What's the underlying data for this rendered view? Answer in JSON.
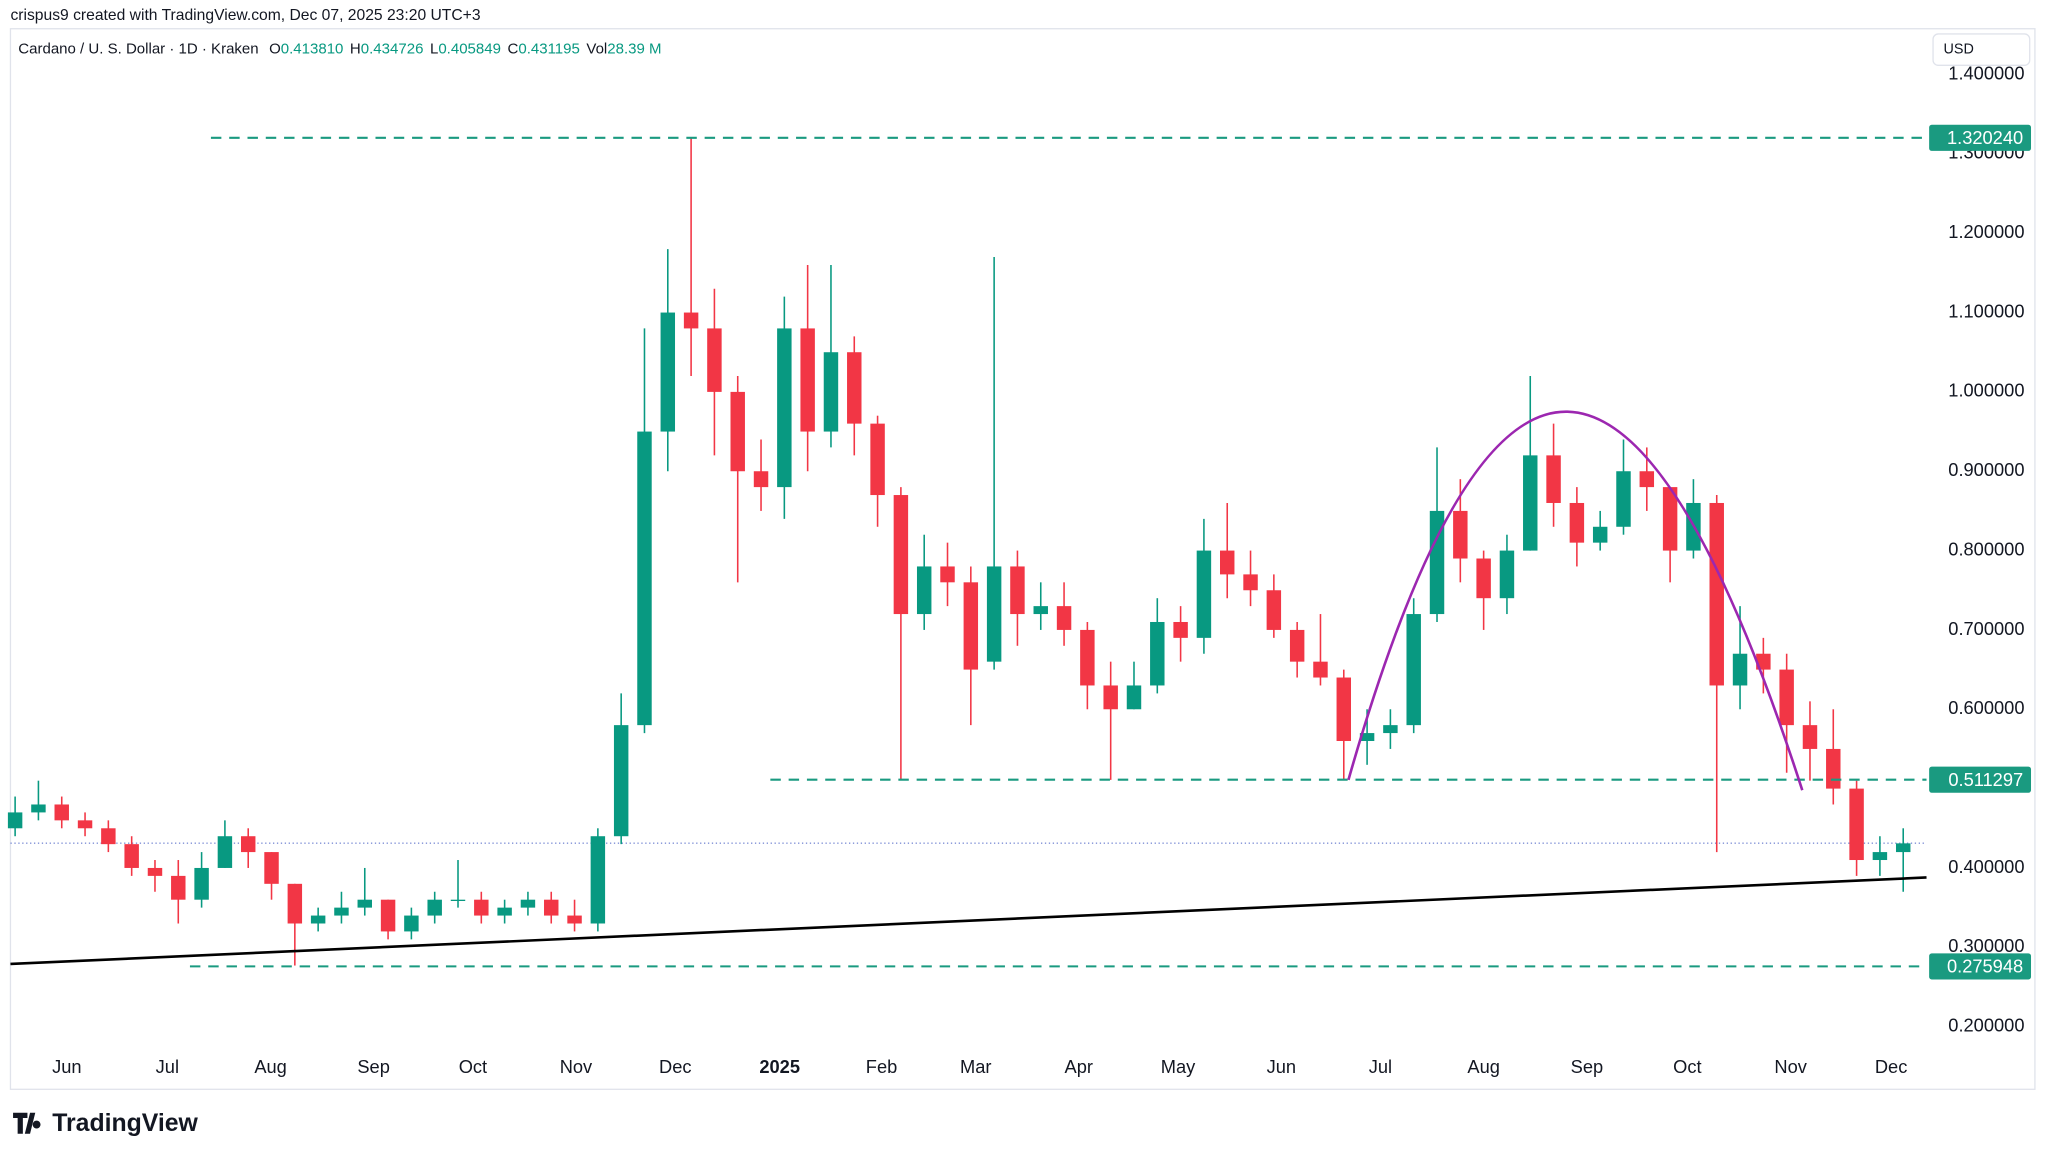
{
  "header": {
    "credit": "crispus9 created with TradingView.com, Dec 07, 2025 23:20 UTC+3",
    "symbol": "Cardano / U. S. Dollar · 1D · Kraken",
    "ohlc_info": [
      {
        "key": "O",
        "value": "0.413810"
      },
      {
        "key": "H",
        "value": "0.434726"
      },
      {
        "key": "L",
        "value": "0.405849"
      },
      {
        "key": "C",
        "value": "0.431195"
      },
      {
        "key": "Vol",
        "value": "28.39 M"
      }
    ],
    "currency": "USD"
  },
  "footer": {
    "brand": "TradingView"
  },
  "chart_data": {
    "type": "candlestick",
    "up_color": "#089981",
    "down_color": "#f23645",
    "ylim": [
      0.177,
      1.461
    ],
    "xlim": [
      -0.2,
      82.0
    ],
    "yticks": [
      {
        "value": 0.2,
        "label": "0.200000"
      },
      {
        "value": 0.3,
        "label": "0.300000"
      },
      {
        "value": 0.4,
        "label": "0.400000"
      },
      {
        "value": 0.6,
        "label": "0.600000"
      },
      {
        "value": 0.7,
        "label": "0.700000"
      },
      {
        "value": 0.8,
        "label": "0.800000"
      },
      {
        "value": 0.9,
        "label": "0.900000"
      },
      {
        "value": 1.0,
        "label": "1.000000"
      },
      {
        "value": 1.1,
        "label": "1.100000"
      },
      {
        "value": 1.2,
        "label": "1.200000"
      },
      {
        "value": 1.3,
        "label": "1.300000"
      },
      {
        "value": 1.4,
        "label": "1.400000"
      }
    ],
    "xticks": [
      {
        "value": 2.22,
        "label": "Jun"
      },
      {
        "value": 6.53,
        "label": "Jul"
      },
      {
        "value": 10.96,
        "label": "Aug"
      },
      {
        "value": 15.38,
        "label": "Sep"
      },
      {
        "value": 19.64,
        "label": "Oct"
      },
      {
        "value": 24.06,
        "label": "Nov"
      },
      {
        "value": 28.32,
        "label": "Dec"
      },
      {
        "value": 32.8,
        "label": "2025"
      },
      {
        "value": 37.17,
        "label": "Feb"
      },
      {
        "value": 41.21,
        "label": "Mar"
      },
      {
        "value": 45.63,
        "label": "Apr"
      },
      {
        "value": 49.89,
        "label": "May"
      },
      {
        "value": 54.32,
        "label": "Jun"
      },
      {
        "value": 58.57,
        "label": "Jul"
      },
      {
        "value": 63.0,
        "label": "Aug"
      },
      {
        "value": 67.43,
        "label": "Sep"
      },
      {
        "value": 71.74,
        "label": "Oct"
      },
      {
        "value": 76.17,
        "label": "Nov"
      },
      {
        "value": 80.48,
        "label": "Dec"
      }
    ],
    "ohlc": [
      [
        0.45,
        0.49,
        0.44,
        0.47
      ],
      [
        0.47,
        0.51,
        0.46,
        0.48
      ],
      [
        0.48,
        0.49,
        0.45,
        0.46
      ],
      [
        0.46,
        0.47,
        0.44,
        0.45
      ],
      [
        0.45,
        0.46,
        0.42,
        0.43
      ],
      [
        0.43,
        0.44,
        0.39,
        0.4
      ],
      [
        0.4,
        0.41,
        0.37,
        0.39
      ],
      [
        0.39,
        0.41,
        0.33,
        0.36
      ],
      [
        0.36,
        0.42,
        0.35,
        0.4
      ],
      [
        0.4,
        0.46,
        0.4,
        0.44
      ],
      [
        0.44,
        0.45,
        0.4,
        0.42
      ],
      [
        0.42,
        0.42,
        0.36,
        0.38
      ],
      [
        0.38,
        0.38,
        0.277,
        0.33
      ],
      [
        0.33,
        0.35,
        0.32,
        0.34
      ],
      [
        0.34,
        0.37,
        0.33,
        0.35
      ],
      [
        0.35,
        0.4,
        0.34,
        0.36
      ],
      [
        0.36,
        0.36,
        0.31,
        0.32
      ],
      [
        0.32,
        0.35,
        0.31,
        0.34
      ],
      [
        0.34,
        0.37,
        0.33,
        0.36
      ],
      [
        0.36,
        0.41,
        0.35,
        0.36
      ],
      [
        0.36,
        0.37,
        0.33,
        0.34
      ],
      [
        0.34,
        0.36,
        0.33,
        0.35
      ],
      [
        0.35,
        0.37,
        0.34,
        0.36
      ],
      [
        0.36,
        0.37,
        0.33,
        0.34
      ],
      [
        0.34,
        0.36,
        0.32,
        0.33
      ],
      [
        0.33,
        0.45,
        0.32,
        0.44
      ],
      [
        0.44,
        0.62,
        0.43,
        0.58
      ],
      [
        0.58,
        1.08,
        0.57,
        0.95
      ],
      [
        0.95,
        1.18,
        0.9,
        1.1
      ],
      [
        1.1,
        1.32,
        1.02,
        1.08
      ],
      [
        1.08,
        1.13,
        0.92,
        1.0
      ],
      [
        1.0,
        1.02,
        0.76,
        0.9
      ],
      [
        0.9,
        0.94,
        0.85,
        0.88
      ],
      [
        0.88,
        1.12,
        0.84,
        1.08
      ],
      [
        1.08,
        1.16,
        0.9,
        0.95
      ],
      [
        0.95,
        1.16,
        0.93,
        1.05
      ],
      [
        1.05,
        1.07,
        0.92,
        0.96
      ],
      [
        0.96,
        0.97,
        0.83,
        0.87
      ],
      [
        0.87,
        0.88,
        0.511,
        0.72
      ],
      [
        0.72,
        0.82,
        0.7,
        0.78
      ],
      [
        0.78,
        0.81,
        0.73,
        0.76
      ],
      [
        0.76,
        0.78,
        0.58,
        0.65
      ],
      [
        0.66,
        1.17,
        0.65,
        0.78
      ],
      [
        0.78,
        0.8,
        0.68,
        0.72
      ],
      [
        0.72,
        0.76,
        0.7,
        0.73
      ],
      [
        0.73,
        0.76,
        0.68,
        0.7
      ],
      [
        0.7,
        0.71,
        0.6,
        0.63
      ],
      [
        0.63,
        0.66,
        0.511,
        0.6
      ],
      [
        0.6,
        0.66,
        0.6,
        0.63
      ],
      [
        0.63,
        0.74,
        0.62,
        0.71
      ],
      [
        0.71,
        0.73,
        0.66,
        0.69
      ],
      [
        0.69,
        0.84,
        0.67,
        0.8
      ],
      [
        0.8,
        0.86,
        0.74,
        0.77
      ],
      [
        0.77,
        0.8,
        0.73,
        0.75
      ],
      [
        0.75,
        0.77,
        0.69,
        0.7
      ],
      [
        0.7,
        0.71,
        0.64,
        0.66
      ],
      [
        0.66,
        0.72,
        0.63,
        0.64
      ],
      [
        0.64,
        0.65,
        0.512,
        0.56
      ],
      [
        0.56,
        0.6,
        0.53,
        0.57
      ],
      [
        0.57,
        0.6,
        0.55,
        0.58
      ],
      [
        0.58,
        0.74,
        0.57,
        0.72
      ],
      [
        0.72,
        0.93,
        0.71,
        0.85
      ],
      [
        0.85,
        0.89,
        0.76,
        0.79
      ],
      [
        0.79,
        0.8,
        0.7,
        0.74
      ],
      [
        0.74,
        0.82,
        0.72,
        0.8
      ],
      [
        0.8,
        1.02,
        0.8,
        0.92
      ],
      [
        0.92,
        0.96,
        0.83,
        0.86
      ],
      [
        0.86,
        0.88,
        0.78,
        0.81
      ],
      [
        0.81,
        0.85,
        0.8,
        0.83
      ],
      [
        0.83,
        0.94,
        0.82,
        0.9
      ],
      [
        0.9,
        0.93,
        0.85,
        0.88
      ],
      [
        0.88,
        0.88,
        0.76,
        0.8
      ],
      [
        0.8,
        0.89,
        0.79,
        0.86
      ],
      [
        0.86,
        0.87,
        0.42,
        0.63
      ],
      [
        0.63,
        0.73,
        0.6,
        0.67
      ],
      [
        0.67,
        0.69,
        0.62,
        0.65
      ],
      [
        0.65,
        0.67,
        0.52,
        0.58
      ],
      [
        0.58,
        0.61,
        0.51,
        0.55
      ],
      [
        0.55,
        0.6,
        0.48,
        0.5
      ],
      [
        0.5,
        0.51,
        0.39,
        0.41
      ],
      [
        0.41,
        0.44,
        0.39,
        0.42
      ],
      [
        0.42,
        0.45,
        0.37,
        0.431
      ]
    ],
    "levels": [
      {
        "value": 1.32024,
        "label": "1.320240",
        "x_start": 8.4
      },
      {
        "value": 0.511297,
        "label": "0.511297",
        "x_start": 32.4
      },
      {
        "value": 0.275948,
        "label": "0.275948",
        "x_start": 7.5
      }
    ],
    "level_color": "#1a9a80",
    "last_price": 0.431195,
    "trendline": {
      "x": [
        -0.2,
        82.0
      ],
      "y": [
        0.279,
        0.388
      ],
      "color": "#000000"
    },
    "arc": {
      "x": [
        57.2,
        66.6,
        76.67
      ],
      "y": [
        0.511,
        0.975,
        0.498
      ],
      "color": "#9c27b0"
    }
  }
}
